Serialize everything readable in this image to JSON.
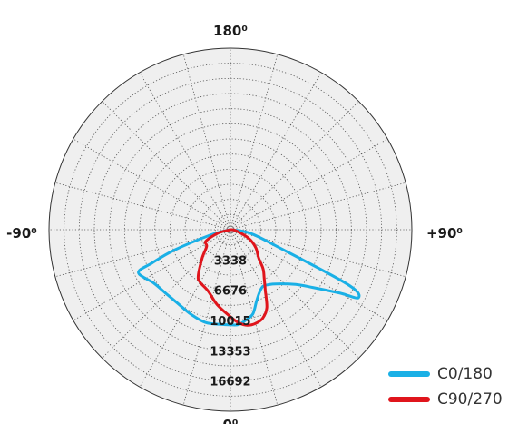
{
  "chart_data": {
    "type": "polar",
    "angle_labels": {
      "top": "180⁰",
      "left": "-90⁰",
      "right": "+90⁰",
      "bottom": "0⁰"
    },
    "radial_ticks": [
      "3338",
      "6676",
      "10015",
      "13353",
      "16692"
    ],
    "radial_tick_values": [
      3338,
      6676,
      10015,
      13353,
      16692
    ],
    "rmax": 20030,
    "grid": true,
    "legend_position": "bottom-right",
    "series": [
      {
        "name": "C0/180",
        "color": "#1ab0e6",
        "angle_deg": [
          -90,
          -80,
          -75,
          -70,
          -67,
          -65,
          -55,
          -45,
          -35,
          -25,
          -15,
          -5,
          0,
          5,
          10,
          15,
          20,
          25,
          30,
          35,
          40,
          50,
          55,
          60,
          62,
          65,
          70,
          80,
          90
        ],
        "values": [
          0,
          330,
          2300,
          6600,
          9400,
          11200,
          10300,
          10000,
          10000,
          10300,
          10600,
          10500,
          10500,
          10500,
          10100,
          9600,
          8400,
          7600,
          7200,
          7400,
          7800,
          9400,
          11100,
          14000,
          16000,
          14300,
          5600,
          2200,
          0
        ]
      },
      {
        "name": "C90/270",
        "color": "#e0151c",
        "angle_deg": [
          -85,
          -75,
          -65,
          -55,
          -45,
          -35,
          -30,
          -20,
          -10,
          0,
          5,
          10,
          15,
          20,
          25,
          30,
          35,
          40,
          45,
          55,
          65,
          80,
          90
        ],
        "values": [
          0,
          1400,
          3000,
          3200,
          4400,
          6200,
          6700,
          7200,
          8400,
          9600,
          10300,
          10700,
          10700,
          10400,
          9500,
          7700,
          6500,
          5600,
          4400,
          3400,
          2200,
          600,
          0
        ]
      }
    ]
  }
}
